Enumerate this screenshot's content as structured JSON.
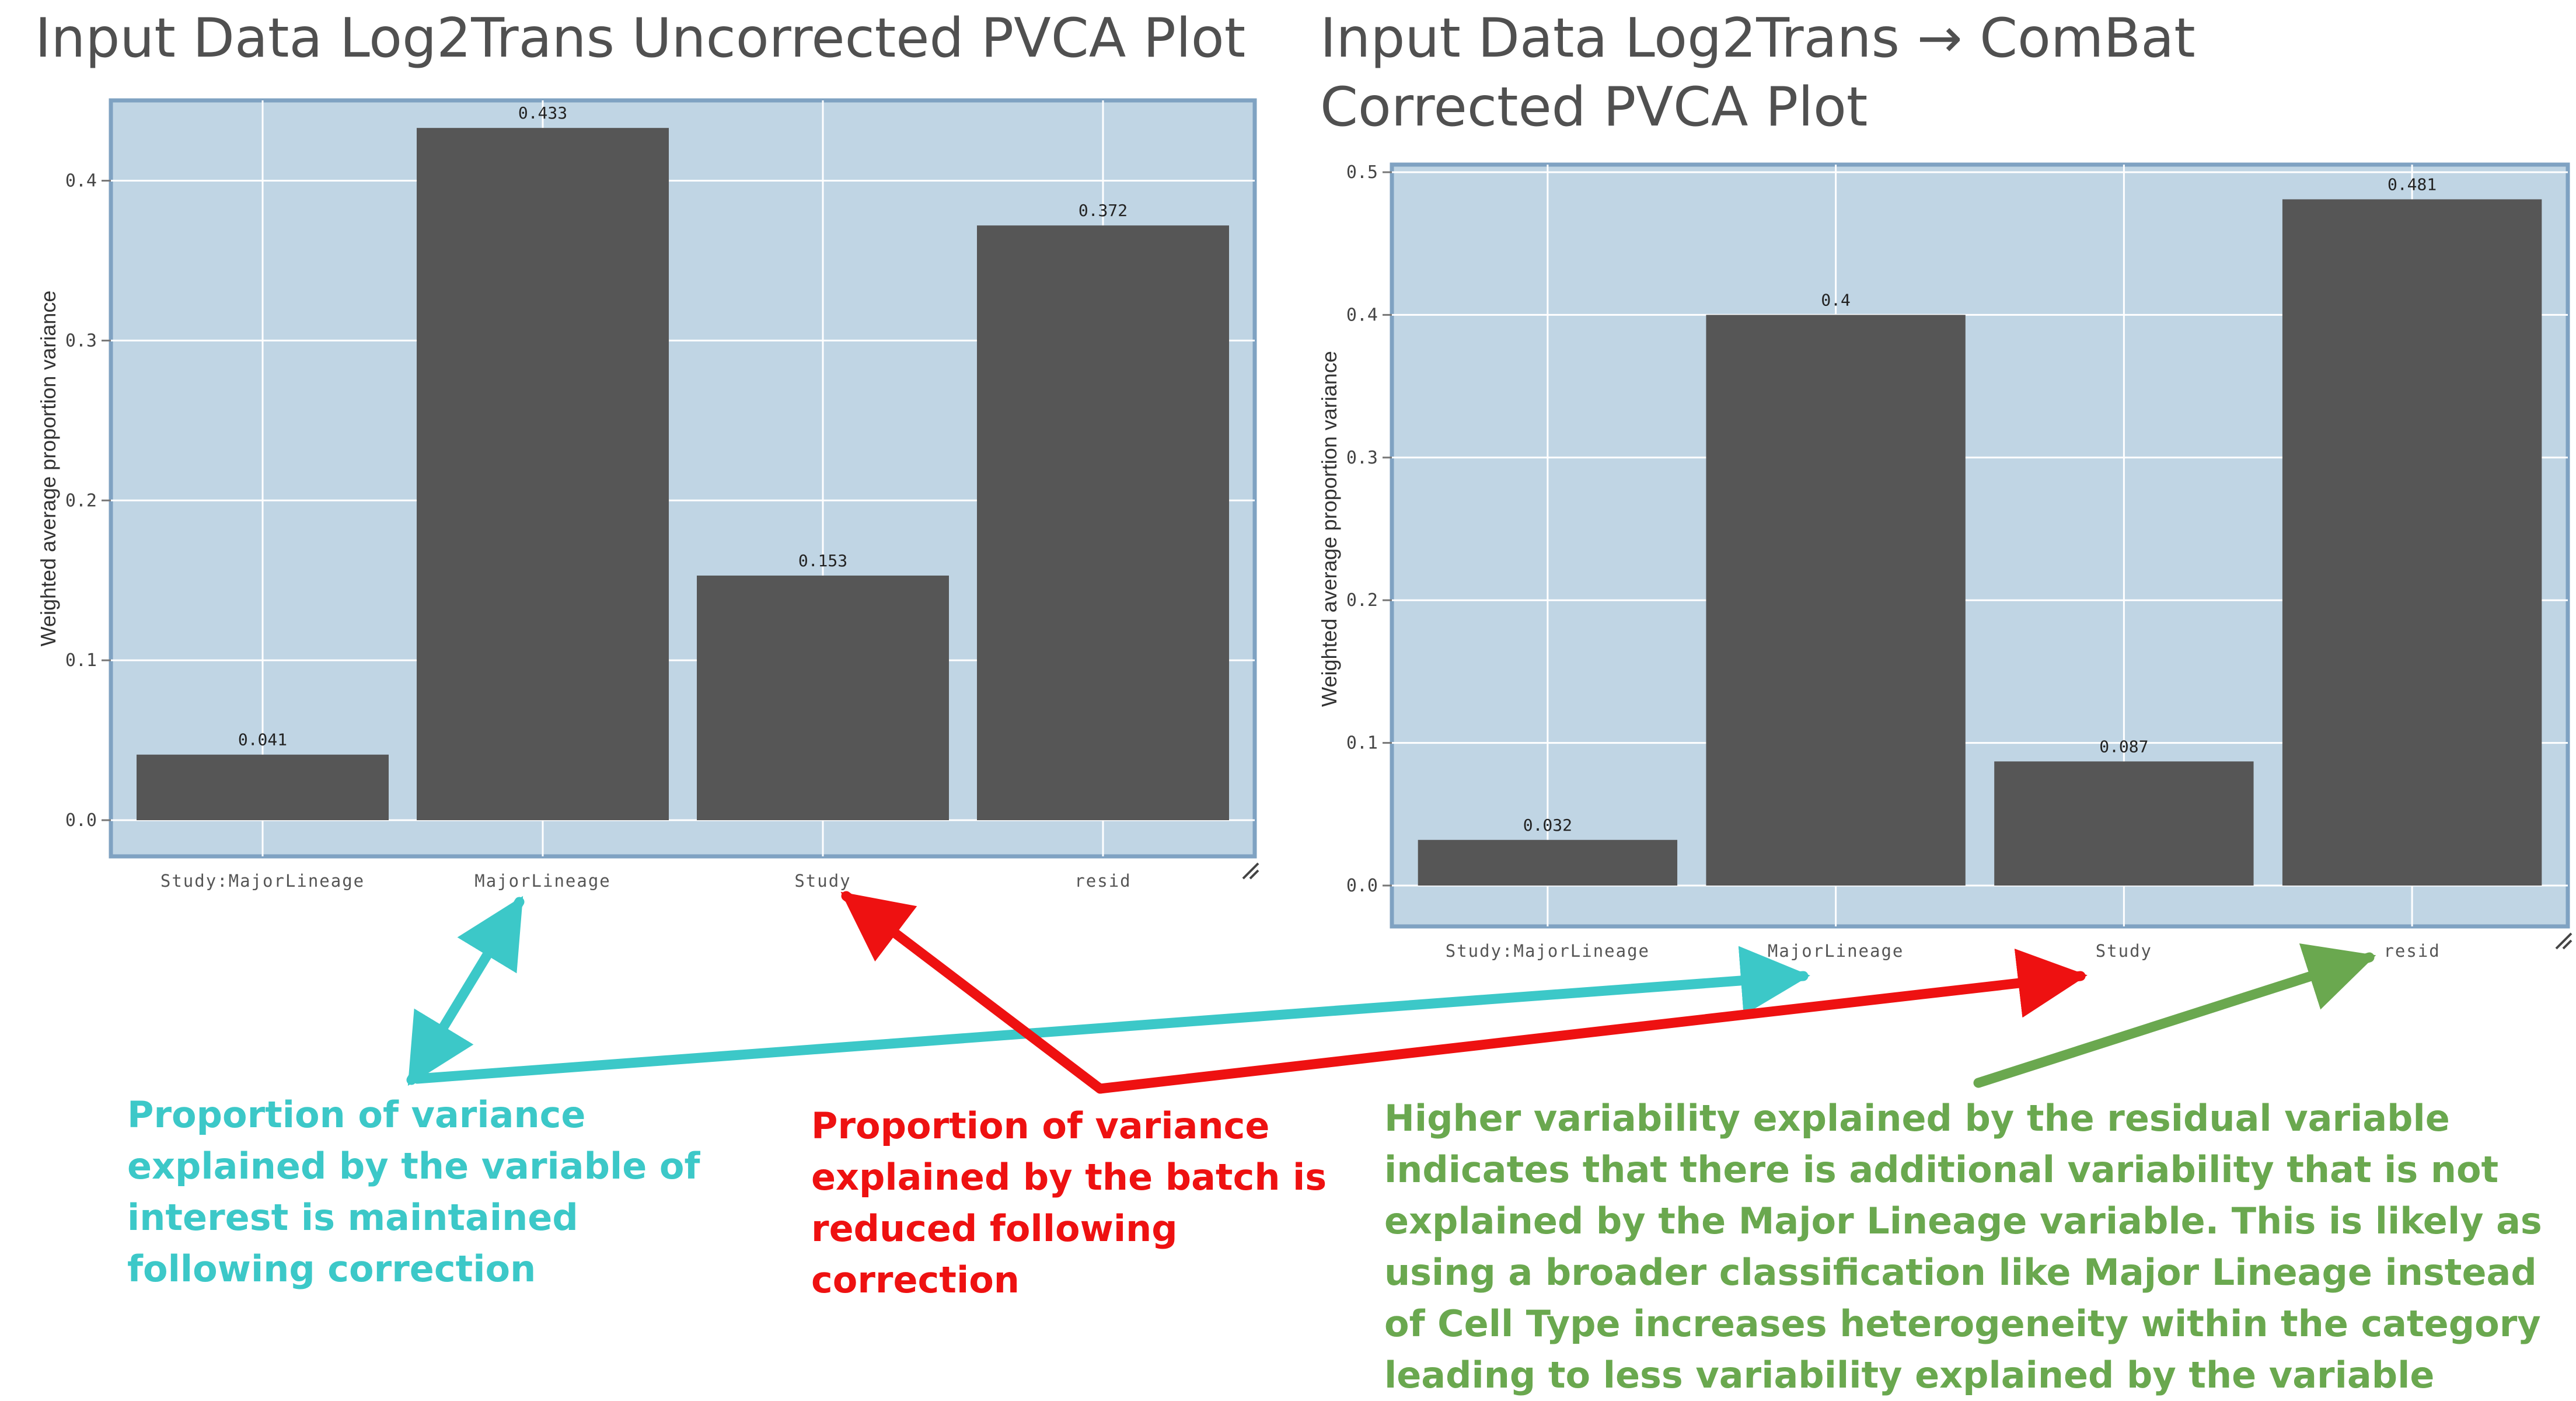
{
  "colors": {
    "panel_bg": "#c0d5e4",
    "panel_border": "#7fa2c2",
    "grid": "#ffffff",
    "bar": "#565656",
    "axis_text": "#444444",
    "title_text": "#505050",
    "note_interest": "#3cc8c8",
    "note_batch": "#ee1111",
    "note_resid": "#6aa84f"
  },
  "chart_data": [
    {
      "type": "bar",
      "title": "Input Data Log2Trans Uncorrected PVCA Plot",
      "ylabel": "Weighted average proportion variance",
      "xlabel": "",
      "categories": [
        "Study:MajorLineage",
        "MajorLineage",
        "Study",
        "resid"
      ],
      "values": [
        0.041,
        0.433,
        0.153,
        0.372
      ],
      "data_labels": [
        "0.041",
        "0.433",
        "0.153",
        "0.372"
      ],
      "ylim": [
        0,
        0.44
      ],
      "yticks": [
        0,
        0.1,
        0.2,
        0.3,
        0.4
      ],
      "ytick_labels": [
        "0.0",
        "0.1",
        "0.2",
        "0.3",
        "0.4"
      ],
      "grid": true,
      "legend": "none"
    },
    {
      "type": "bar",
      "title": "Input Data Log2Trans → ComBat Corrected PVCA Plot",
      "ylabel": "Weighted average proportion variance",
      "xlabel": "",
      "categories": [
        "Study:MajorLineage",
        "MajorLineage",
        "Study",
        "resid"
      ],
      "values": [
        0.032,
        0.4,
        0.087,
        0.481
      ],
      "data_labels": [
        "0.032",
        "0.4",
        "0.087",
        "0.481"
      ],
      "ylim": [
        0,
        0.5
      ],
      "yticks": [
        0,
        0.1,
        0.2,
        0.3,
        0.4,
        0.5
      ],
      "ytick_labels": [
        "0.0",
        "0.1",
        "0.2",
        "0.3",
        "0.4",
        "0.5"
      ],
      "grid": true,
      "legend": "none"
    }
  ],
  "annotations": {
    "interest": "Proportion of variance explained by the variable of interest is maintained following correction",
    "batch": "Proportion of variance explained by the batch is reduced following correction",
    "resid": "Higher variability explained by the residual variable indicates that there is additional variability that is not explained by the Major Lineage variable. This is likely as using a broader classification like Major Lineage instead of Cell Type increases heterogeneity within the category leading to less variability explained by the variable"
  }
}
